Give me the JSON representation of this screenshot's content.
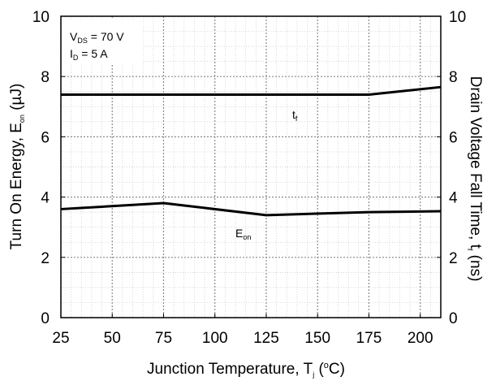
{
  "chart_data": {
    "type": "line",
    "x": [
      25,
      75,
      125,
      175,
      210
    ],
    "series": [
      {
        "label": "t_f",
        "axis": "right",
        "values": [
          7.4,
          7.4,
          7.4,
          7.4,
          7.65
        ]
      },
      {
        "label": "E_on",
        "axis": "left",
        "values": [
          3.6,
          3.8,
          3.4,
          3.5,
          3.53
        ]
      }
    ],
    "xlim": [
      25,
      210
    ],
    "xticks": [
      "25",
      "50",
      "75",
      "100",
      "125",
      "150",
      "175",
      "200"
    ],
    "ylim_left": [
      0,
      10
    ],
    "ylim_right": [
      0,
      10
    ],
    "yticks_left": [
      "0",
      "2",
      "4",
      "6",
      "8",
      "10"
    ],
    "yticks_right": [
      "0",
      "2",
      "4",
      "6",
      "8",
      "10"
    ],
    "xlabel": {
      "main": "Junction Temperature, T",
      "sub": "j",
      "open": " (",
      "sup": "o",
      "close": "C)"
    },
    "ylabel_left": {
      "main": "Turn On Energy, E",
      "sub": "on",
      "unit": " (µJ)"
    },
    "ylabel_right": {
      "main": "Drain Voltage Fall Time, t",
      "sub": "f",
      "unit": " (ns)"
    },
    "annotations": {
      "vds": {
        "main": "V",
        "sub": "DS",
        "rest": " = 70 V"
      },
      "id": {
        "main": "I",
        "sub": "D",
        "rest": " = 5 A"
      },
      "tf": {
        "main": "t",
        "sub": "f"
      },
      "eon": {
        "main": "E",
        "sub": "on"
      }
    },
    "grid": true
  }
}
